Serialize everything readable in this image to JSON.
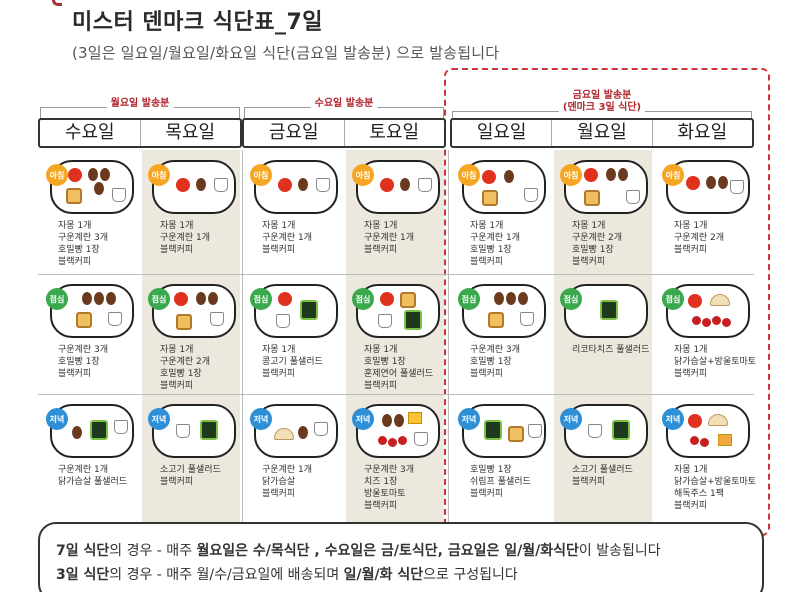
{
  "title": "미스터 덴마크 식단표_7일",
  "subtitle": "(3일은 일요일/월요일/화요일 식단(금요일 발송분) 으로 발송됩니다",
  "groups": [
    {
      "label": "월요일 발송분"
    },
    {
      "label": "수요일 발송분"
    },
    {
      "label": "금요일 발송분",
      "sublabel": "(덴마크 3일 식단)"
    }
  ],
  "days": [
    "수요일",
    "목요일",
    "금요일",
    "토요일",
    "일요일",
    "월요일",
    "화요일"
  ],
  "meals": {
    "morning": "아침",
    "lunch": "점심",
    "dinner": "저녁"
  },
  "menu": {
    "wed_morning": "자몽 1개\n구운계란 3개\n호밀빵 1장\n블랙커피",
    "thu_morning": "자몽 1개\n구운계란 1개\n블랙커피",
    "fri_morning": "자몽 1개\n구운계란 1개\n블랙커피",
    "sat_morning": "자몽 1개\n구운계란 1개\n블랙커피",
    "sun_morning": "자몽 1개\n구운계란 1개\n호밀빵 1장\n블랙커피",
    "mon_morning": "자몽 1개\n구운계란 2개\n호밀빵 1장\n블랙커피",
    "tue_morning": "자몽 1개\n구운계란 2개\n블랙커피",
    "wed_lunch": "구운계란 3개\n호밀빵 1장\n블랙커피",
    "thu_lunch": "자몽 1개\n구운계란 2개\n호밀빵 1장\n블랙커피",
    "fri_lunch": "자몽 1개\n콩고기 풀샐러드\n블랙커피",
    "sat_lunch": "자몽 1개\n호밀빵 1장\n훈제연어 풀샐러드\n블랙커피",
    "sun_lunch": "구운계란 3개\n호밀빵 1장\n블랙커피",
    "mon_lunch": "리코타치즈 풀샐러드",
    "tue_lunch": "자몽 1개\n닭가슴살+방울토마토\n블랙커피",
    "wed_dinner": "구운계란 1개\n닭가슴살 풀샐러드",
    "thu_dinner": "소고기 풀샐러드\n블랙커피",
    "fri_dinner": "구운계란 1개\n닭가슴살\n블랙커피",
    "sat_dinner": "구운계란 3개\n치즈 1장\n방울토마토\n블랙커피",
    "sun_dinner": "호밀빵 1장\n쉬림프 풀샐러드\n블랙커피",
    "mon_dinner": "소고기 풀샐러드\n블랙커피",
    "tue_dinner": "자몽 1개\n닭가슴살+방울토마토\n해독주스 1팩\n블랙커피"
  },
  "notes": {
    "line1_a": "7일 식단",
    "line1_b": "의 경우 - 매주 ",
    "line1_c": "월요일은 수/목식단 , 수요일은 금/토식단, 금요일은 일/월/화식단",
    "line1_d": "이 발송됩니다",
    "line2_a": "3일 식단",
    "line2_b": "의 경우 - 매주 월/수/금요일에 배송되며 ",
    "line2_c": "일/월/화 식단",
    "line2_d": "으로 구성됩니다"
  },
  "colors": {
    "accent": "#c0242e",
    "shade": "#ece8dd",
    "morning": "#f5a623",
    "lunch": "#3aa84c",
    "dinner": "#2f8fd6"
  }
}
